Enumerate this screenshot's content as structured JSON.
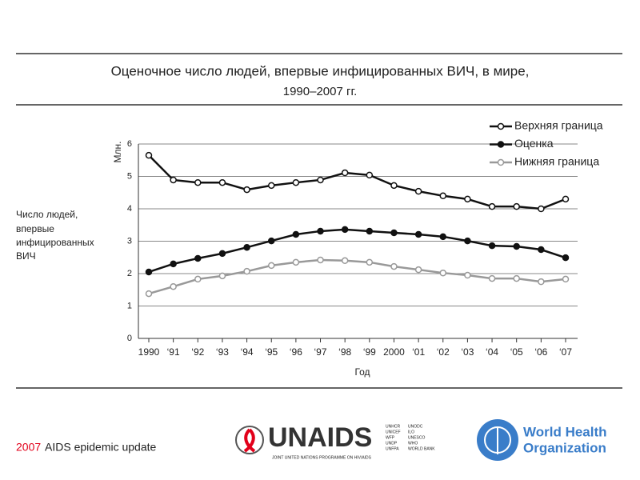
{
  "chart_data": {
    "type": "line",
    "title": [
      "Оценочное число людей, впервые инфицированных ВИЧ, в мире,",
      "1990–2007 гг."
    ],
    "y_label": [
      "Число людей,",
      "впервые",
      "инфицированных",
      "ВИЧ"
    ],
    "y_unit": "Млн.",
    "x_label": "Год",
    "categories": [
      "1990",
      "‘91",
      "‘92",
      "‘93",
      "‘94",
      "‘95",
      "‘96",
      "‘97",
      "‘98",
      "‘99",
      "2000",
      "‘01",
      "‘02",
      "‘03",
      "‘04",
      "‘05",
      "‘06",
      "‘07"
    ],
    "series": [
      {
        "name": "Верхняя граница",
        "color": "#111111",
        "marker_fill": "#ffffff",
        "values": [
          5.65,
          4.89,
          4.81,
          4.81,
          4.59,
          4.72,
          4.81,
          4.89,
          5.11,
          5.04,
          4.72,
          4.54,
          4.4,
          4.3,
          4.07,
          4.07,
          4.0,
          4.3
        ]
      },
      {
        "name": "Оценка",
        "color": "#111111",
        "marker_fill": "#111111",
        "values": [
          2.05,
          2.3,
          2.47,
          2.62,
          2.81,
          3.01,
          3.21,
          3.31,
          3.36,
          3.31,
          3.26,
          3.21,
          3.14,
          3.01,
          2.86,
          2.84,
          2.74,
          2.49
        ]
      },
      {
        "name": "Нижняя граница",
        "color": "#999999",
        "marker_fill": "#ffffff",
        "values": [
          1.38,
          1.6,
          1.83,
          1.93,
          2.07,
          2.25,
          2.35,
          2.42,
          2.4,
          2.35,
          2.22,
          2.12,
          2.02,
          1.95,
          1.85,
          1.85,
          1.75,
          1.83
        ]
      }
    ],
    "ylim": [
      0,
      6
    ],
    "yticks": [
      0,
      1,
      2,
      3,
      4,
      5,
      6
    ],
    "grid": true,
    "legend": "upper right",
    "footer": {
      "year": "2007",
      "text": "AIDS epidemic update"
    },
    "logos": {
      "unaids": "UNAIDS",
      "unaids_sub": "JOINT UNITED NATIONS PROGRAMME ON HIV/AIDS",
      "cosponsors_1": [
        "UNHCR",
        "UNICEF",
        "WFP",
        "UNDP",
        "UNFPA"
      ],
      "cosponsors_2": [
        "UNODC",
        "ILO",
        "UNESCO",
        "WHO",
        "WORLD BANK"
      ],
      "who": [
        "World Health",
        "Organization"
      ]
    }
  }
}
